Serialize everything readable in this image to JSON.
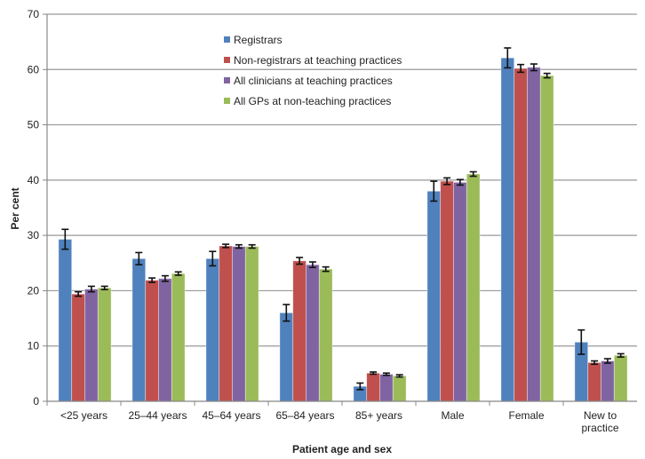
{
  "chart_data": {
    "type": "bar",
    "title": "",
    "xlabel": "Patient age and sex",
    "ylabel": "Per cent",
    "ylim": [
      0,
      70
    ],
    "yticks": [
      0,
      10,
      20,
      30,
      40,
      50,
      60,
      70
    ],
    "grid": true,
    "legend_position": "top-left",
    "categories": [
      "<25 years",
      "25–44 years",
      "45–64 years",
      "65–84 years",
      "85+ years",
      "Male",
      "Female",
      "New to practice"
    ],
    "series": [
      {
        "name": "Registrars",
        "color": "#4F81BD",
        "values": [
          29.3,
          25.8,
          25.8,
          16.0,
          2.7,
          38.0,
          62.1,
          10.7
        ],
        "errors": [
          1.8,
          1.1,
          1.3,
          1.5,
          0.6,
          1.8,
          1.8,
          2.2
        ]
      },
      {
        "name": "Non-registrars at teaching practices",
        "color": "#C0504D",
        "values": [
          19.4,
          21.9,
          28.1,
          25.4,
          5.1,
          39.8,
          60.2,
          7.0
        ],
        "errors": [
          0.4,
          0.4,
          0.3,
          0.6,
          0.2,
          0.6,
          0.7,
          0.3
        ]
      },
      {
        "name": "All clinicians at teaching practices",
        "color": "#8064A2",
        "values": [
          20.3,
          22.2,
          28.0,
          24.7,
          4.9,
          39.6,
          60.4,
          7.3
        ],
        "errors": [
          0.5,
          0.5,
          0.3,
          0.5,
          0.2,
          0.5,
          0.6,
          0.4
        ]
      },
      {
        "name": "All GPs at non-teaching practices",
        "color": "#9BBB59",
        "values": [
          20.5,
          23.1,
          28.0,
          23.9,
          4.6,
          41.1,
          58.9,
          8.3
        ],
        "errors": [
          0.3,
          0.3,
          0.3,
          0.4,
          0.2,
          0.4,
          0.4,
          0.3
        ]
      }
    ]
  }
}
